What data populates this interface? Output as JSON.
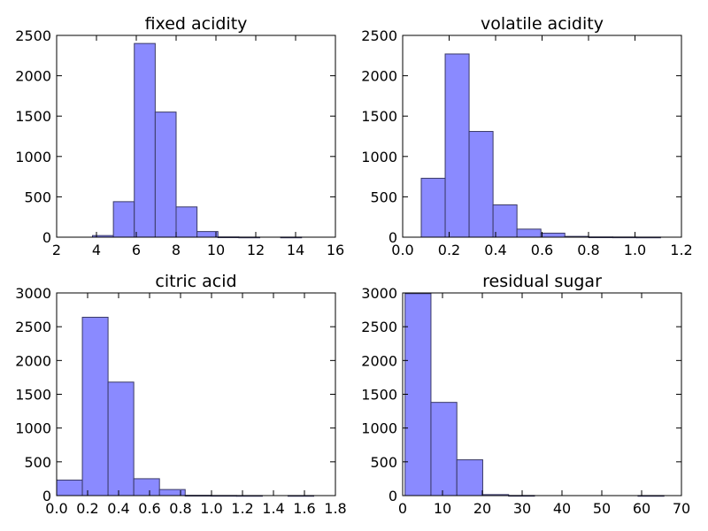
{
  "chart_data": [
    {
      "type": "bar",
      "title": "fixed acidity",
      "xlim": [
        2,
        16
      ],
      "ylim": [
        0,
        2500
      ],
      "xticks": [
        "2",
        "4",
        "6",
        "8",
        "10",
        "12",
        "14",
        "16"
      ],
      "yticks": [
        "0",
        "500",
        "1000",
        "1500",
        "2000",
        "2500"
      ],
      "bins": [
        {
          "x0": 3.8,
          "x1": 4.85,
          "count": 20
        },
        {
          "x0": 4.85,
          "x1": 5.9,
          "count": 440
        },
        {
          "x0": 5.9,
          "x1": 6.95,
          "count": 2400
        },
        {
          "x0": 6.95,
          "x1": 8.0,
          "count": 1550
        },
        {
          "x0": 8.0,
          "x1": 9.05,
          "count": 375
        },
        {
          "x0": 9.05,
          "x1": 10.1,
          "count": 70
        },
        {
          "x0": 10.1,
          "x1": 11.15,
          "count": 3
        },
        {
          "x0": 11.15,
          "x1": 12.2,
          "count": 1
        },
        {
          "x0": 12.2,
          "x1": 13.25,
          "count": 0
        },
        {
          "x0": 13.25,
          "x1": 14.3,
          "count": 1
        }
      ]
    },
    {
      "type": "bar",
      "title": "volatile acidity",
      "xlim": [
        0.0,
        1.2
      ],
      "ylim": [
        0,
        2500
      ],
      "xticks": [
        "0.0",
        "0.2",
        "0.4",
        "0.6",
        "0.8",
        "1.0",
        "1.2"
      ],
      "yticks": [
        "0",
        "500",
        "1000",
        "1500",
        "2000",
        "2500"
      ],
      "bins": [
        {
          "x0": 0.08,
          "x1": 0.183,
          "count": 730
        },
        {
          "x0": 0.183,
          "x1": 0.286,
          "count": 2270
        },
        {
          "x0": 0.286,
          "x1": 0.389,
          "count": 1310
        },
        {
          "x0": 0.389,
          "x1": 0.492,
          "count": 400
        },
        {
          "x0": 0.492,
          "x1": 0.595,
          "count": 100
        },
        {
          "x0": 0.595,
          "x1": 0.698,
          "count": 50
        },
        {
          "x0": 0.698,
          "x1": 0.801,
          "count": 10
        },
        {
          "x0": 0.801,
          "x1": 0.904,
          "count": 3
        },
        {
          "x0": 0.904,
          "x1": 1.007,
          "count": 2
        },
        {
          "x0": 1.007,
          "x1": 1.11,
          "count": 1
        }
      ]
    },
    {
      "type": "bar",
      "title": "citric acid",
      "xlim": [
        0.0,
        1.8
      ],
      "ylim": [
        0,
        3000
      ],
      "xticks": [
        "0.0",
        "0.2",
        "0.4",
        "0.6",
        "0.8",
        "1.0",
        "1.2",
        "1.4",
        "1.6",
        "1.8"
      ],
      "yticks": [
        "0",
        "500",
        "1000",
        "1500",
        "2000",
        "2500",
        "3000"
      ],
      "bins": [
        {
          "x0": 0.0,
          "x1": 0.166,
          "count": 230
        },
        {
          "x0": 0.166,
          "x1": 0.332,
          "count": 2640
        },
        {
          "x0": 0.332,
          "x1": 0.498,
          "count": 1680
        },
        {
          "x0": 0.498,
          "x1": 0.664,
          "count": 250
        },
        {
          "x0": 0.664,
          "x1": 0.83,
          "count": 90
        },
        {
          "x0": 0.83,
          "x1": 0.996,
          "count": 4
        },
        {
          "x0": 0.996,
          "x1": 1.162,
          "count": 2
        },
        {
          "x0": 1.162,
          "x1": 1.328,
          "count": 1
        },
        {
          "x0": 1.328,
          "x1": 1.494,
          "count": 0
        },
        {
          "x0": 1.494,
          "x1": 1.66,
          "count": 1
        }
      ]
    },
    {
      "type": "bar",
      "title": "residual sugar",
      "xlim": [
        0,
        70
      ],
      "ylim": [
        0,
        3000
      ],
      "xticks": [
        "0",
        "10",
        "20",
        "30",
        "40",
        "50",
        "60",
        "70"
      ],
      "yticks": [
        "0",
        "500",
        "1000",
        "1500",
        "2000",
        "2500",
        "3000"
      ],
      "bins": [
        {
          "x0": 0.6,
          "x1": 7.1,
          "count": 2990
        },
        {
          "x0": 7.1,
          "x1": 13.6,
          "count": 1380
        },
        {
          "x0": 13.6,
          "x1": 20.1,
          "count": 530
        },
        {
          "x0": 20.1,
          "x1": 26.6,
          "count": 15
        },
        {
          "x0": 26.6,
          "x1": 33.1,
          "count": 2
        },
        {
          "x0": 33.1,
          "x1": 39.6,
          "count": 0
        },
        {
          "x0": 39.6,
          "x1": 46.1,
          "count": 0
        },
        {
          "x0": 46.1,
          "x1": 52.6,
          "count": 0
        },
        {
          "x0": 52.6,
          "x1": 59.1,
          "count": 0
        },
        {
          "x0": 59.1,
          "x1": 65.6,
          "count": 1
        }
      ]
    }
  ],
  "colors": {
    "bar_fill": "#8a8aff",
    "bar_edge": "#3a3a66",
    "axis": "#000000",
    "background": "#ffffff"
  }
}
